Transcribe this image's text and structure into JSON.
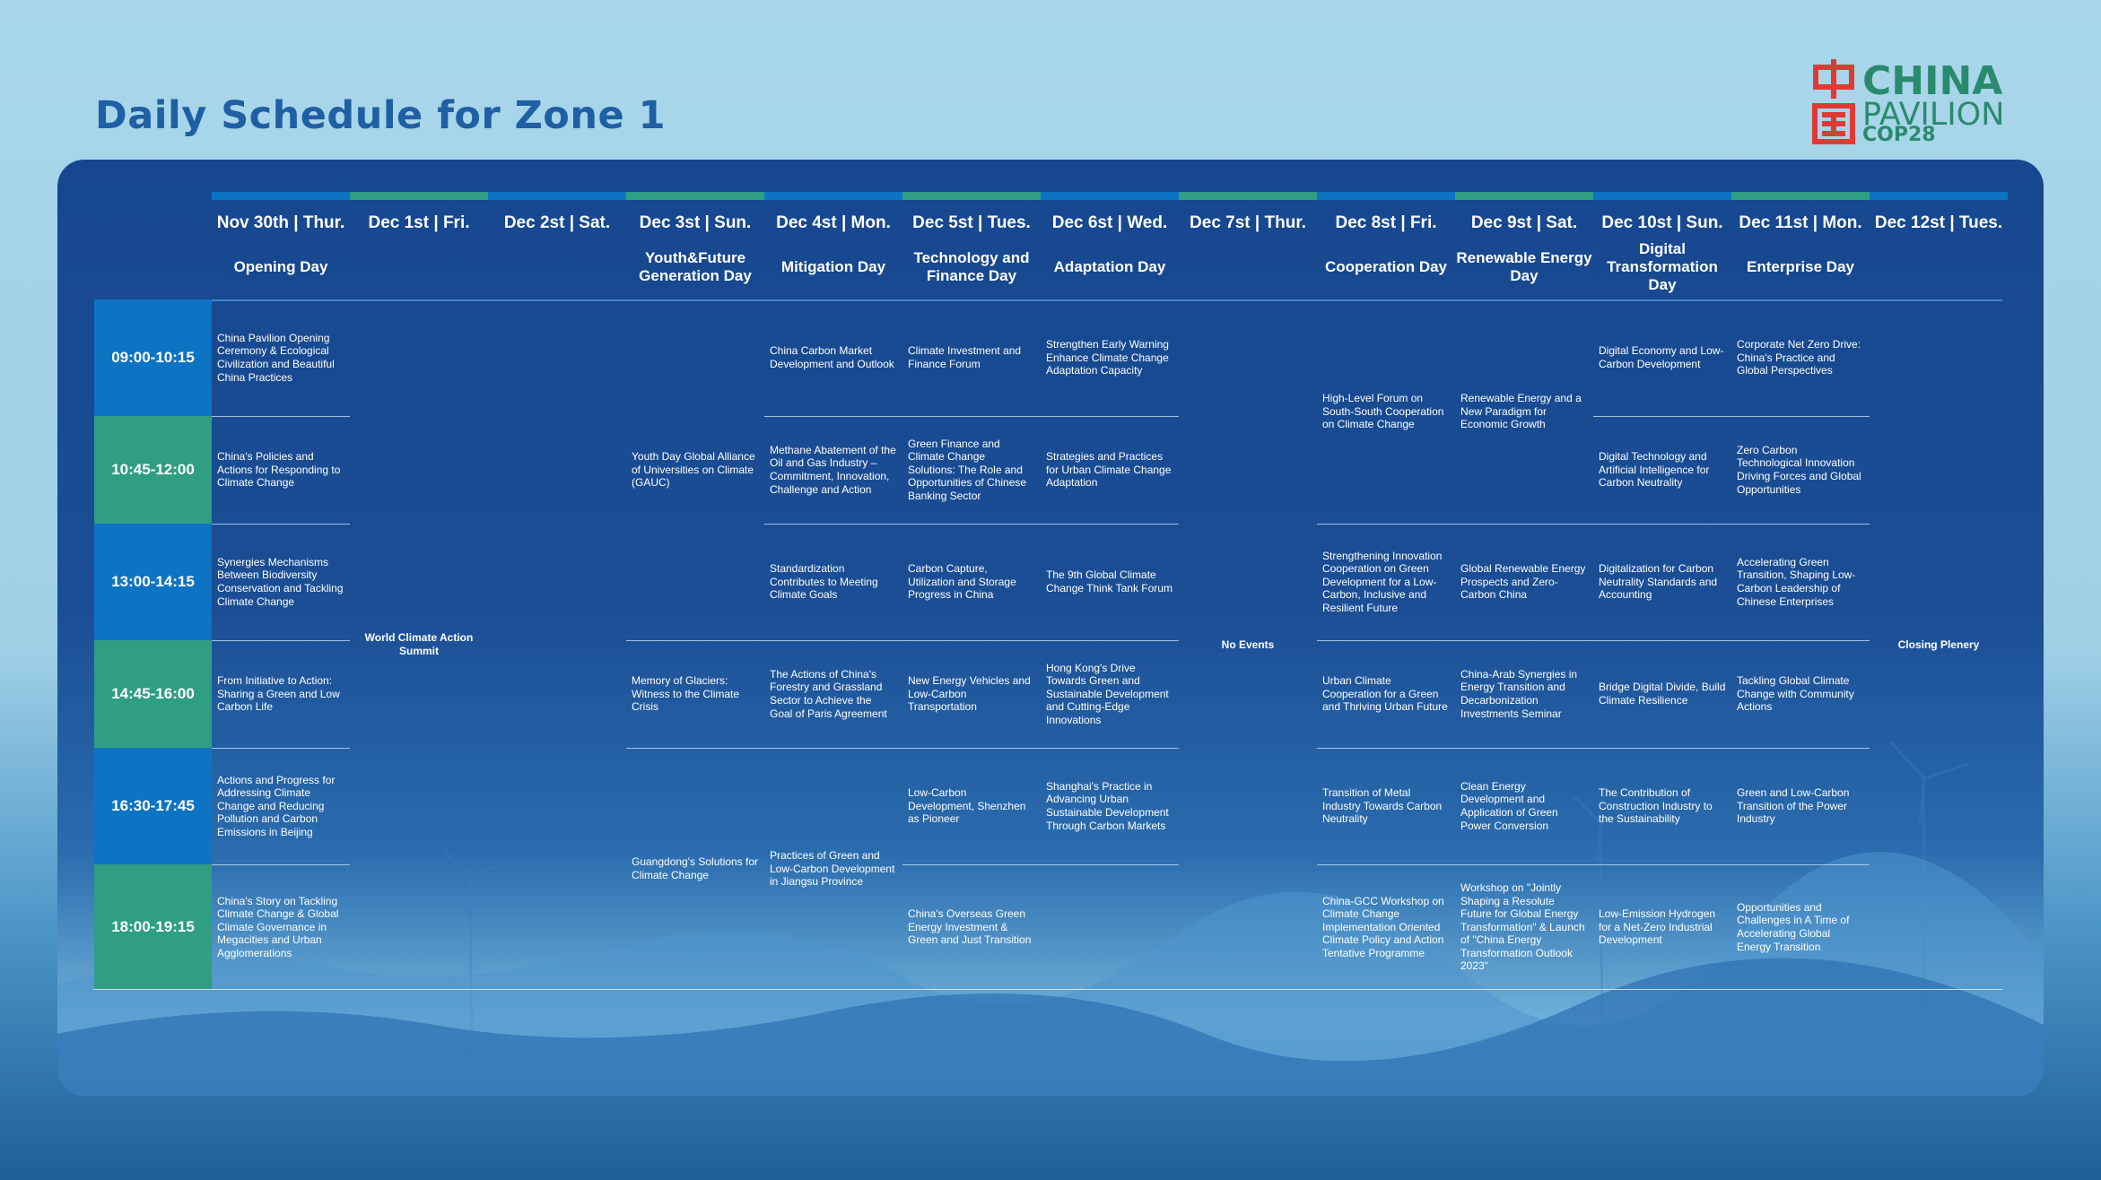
{
  "title": "Daily Schedule for Zone 1",
  "logo": {
    "line1": "CHINA",
    "line2": "PAVILION",
    "line3": "COP28",
    "mark": "chinese-character-zhong-guo"
  },
  "colors": {
    "blue_accent": "#0d74c4",
    "green_accent": "#2f9e83",
    "title": "#1f5fa3",
    "board": "#16478f"
  },
  "days": [
    {
      "label": "Nov 30th | Thur.",
      "theme": "Opening Day"
    },
    {
      "label": "Dec 1st | Fri.",
      "theme": ""
    },
    {
      "label": "Dec 2st | Sat.",
      "theme": ""
    },
    {
      "label": "Dec 3st | Sun.",
      "theme": "Youth&Future Generation Day"
    },
    {
      "label": "Dec 4st | Mon.",
      "theme": "Mitigation Day"
    },
    {
      "label": "Dec 5st | Tues.",
      "theme": "Technology and Finance Day"
    },
    {
      "label": "Dec 6st | Wed.",
      "theme": "Adaptation Day"
    },
    {
      "label": "Dec 7st | Thur.",
      "theme": ""
    },
    {
      "label": "Dec 8st | Fri.",
      "theme": "Cooperation Day"
    },
    {
      "label": "Dec 9st | Sat.",
      "theme": "Renewable Energy Day"
    },
    {
      "label": "Dec 10st | Sun.",
      "theme": "Digital Transformation Day"
    },
    {
      "label": "Dec 11st | Mon.",
      "theme": "Enterprise Day"
    },
    {
      "label": "Dec 12st | Tues.",
      "theme": ""
    }
  ],
  "timeslots": [
    "09:00-10:15",
    "10:45-12:00",
    "13:00-14:15",
    "14:45-16:00",
    "16:30-17:45",
    "18:00-19:15"
  ],
  "sessions": [
    {
      "text": "China Pavilion Opening Ceremony & Ecological Civilization and Beautiful China Practices"
    },
    {
      "text": "China's Policies and Actions for Responding to Climate Change"
    },
    {
      "text": "Synergies Mechanisms Between Biodiversity Conservation and Tackling Climate Change"
    },
    {
      "text": "From Initiative to Action: Sharing a Green and Low Carbon Life"
    },
    {
      "text": "Actions and Progress for Addressing Climate Change and Reducing Pollution and Carbon Emissions in Beijing"
    },
    {
      "text": "China's Story on Tackling Climate Change & Global Climate Governance in Megacities and Urban Agglomerations"
    },
    {
      "text": "World Climate Action Summit"
    },
    {
      "text": "Youth Day  Global Alliance of Universities on Climate (GAUC)"
    },
    {
      "text": "Memory of Glaciers: Witness to the Climate Crisis"
    },
    {
      "text": "Guangdong's Solutions for Climate Change"
    },
    {
      "text": "China Carbon Market Development and Outlook"
    },
    {
      "text": "Methane Abatement of the Oil and Gas Industry – Commitment, Innovation, Challenge and Action"
    },
    {
      "text": "Standardization Contributes to Meeting Climate Goals"
    },
    {
      "text": "The Actions of China's Forestry and Grassland Sector to Achieve the Goal of Paris Agreement"
    },
    {
      "text": "Practices of Green and Low-Carbon Development in Jiangsu Province"
    },
    {
      "text": "Climate Investment and Finance Forum"
    },
    {
      "text": "Green Finance and Climate Change Solutions: The Role and Opportunities of Chinese Banking Sector"
    },
    {
      "text": "Carbon Capture, Utilization and Storage Progress in China"
    },
    {
      "text": "New Energy Vehicles and Low-Carbon Transportation"
    },
    {
      "text": "Low-Carbon Development, Shenzhen as Pioneer"
    },
    {
      "text": "China's Overseas Green Energy Investment & Green and Just Transition"
    },
    {
      "text": "Strengthen Early Warning Enhance Climate Change Adaptation Capacity"
    },
    {
      "text": "Strategies and Practices for Urban Climate Change Adaptation"
    },
    {
      "text": "The 9th Global Climate Change Think Tank Forum"
    },
    {
      "text": "Hong Kong's Drive Towards Green and Sustainable Development and Cutting-Edge Innovations"
    },
    {
      "text": "Shanghai's Practice in Advancing Urban Sustainable Development Through Carbon Markets"
    },
    {
      "text": "No Events"
    },
    {
      "text": "High-Level Forum on South-South Cooperation on Climate Change"
    },
    {
      "text": "Strengthening Innovation Cooperation on Green Development for a Low-Carbon, Inclusive and Resilient Future"
    },
    {
      "text": "Urban Climate Cooperation for a Green and Thriving Urban Future"
    },
    {
      "text": "Transition of Metal Industry Towards Carbon Neutrality"
    },
    {
      "text": "China-GCC Workshop on Climate Change Implementation Oriented Climate Policy and Action Tentative Programme"
    },
    {
      "text": "Renewable Energy and a New Paradigm for Economic Growth"
    },
    {
      "text": "Global Renewable Energy Prospects and Zero-Carbon China"
    },
    {
      "text": "China-Arab Synergies in Energy Transition and Decarbonization Investments Seminar"
    },
    {
      "text": "Clean Energy Development and Application of Green Power Conversion"
    },
    {
      "text": "Workshop on \"Jointly Shaping a Resolute Future for Global Energy Transformation\" & Launch of \"China Energy Transformation Outlook 2023\""
    },
    {
      "text": "Digital Economy and Low-Carbon Development"
    },
    {
      "text": "Digital Technology and Artificial Intelligence for Carbon Neutrality"
    },
    {
      "text": "Digitalization for Carbon Neutrality Standards and Accounting"
    },
    {
      "text": "Bridge Digital Divide, Build Climate Resilience"
    },
    {
      "text": "The Contribution of Construction Industry to the Sustainability"
    },
    {
      "text": "Low-Emission Hydrogen for a Net-Zero Industrial Development"
    },
    {
      "text": "Corporate Net Zero Drive: China's Practice and Global Perspectives"
    },
    {
      "text": "Zero Carbon Technological Innovation Driving Forces and Global Opportunities"
    },
    {
      "text": "Accelerating Green Transition, Shaping Low-Carbon Leadership of Chinese Enterprises"
    },
    {
      "text": "Tackling Global Climate Change with Community Actions"
    },
    {
      "text": "Green and Low-Carbon Transition of the Power Industry"
    },
    {
      "text": "Opportunities and Challenges in A Time of Accelerating Global Energy Transition"
    },
    {
      "text": "Closing Plenery"
    }
  ]
}
